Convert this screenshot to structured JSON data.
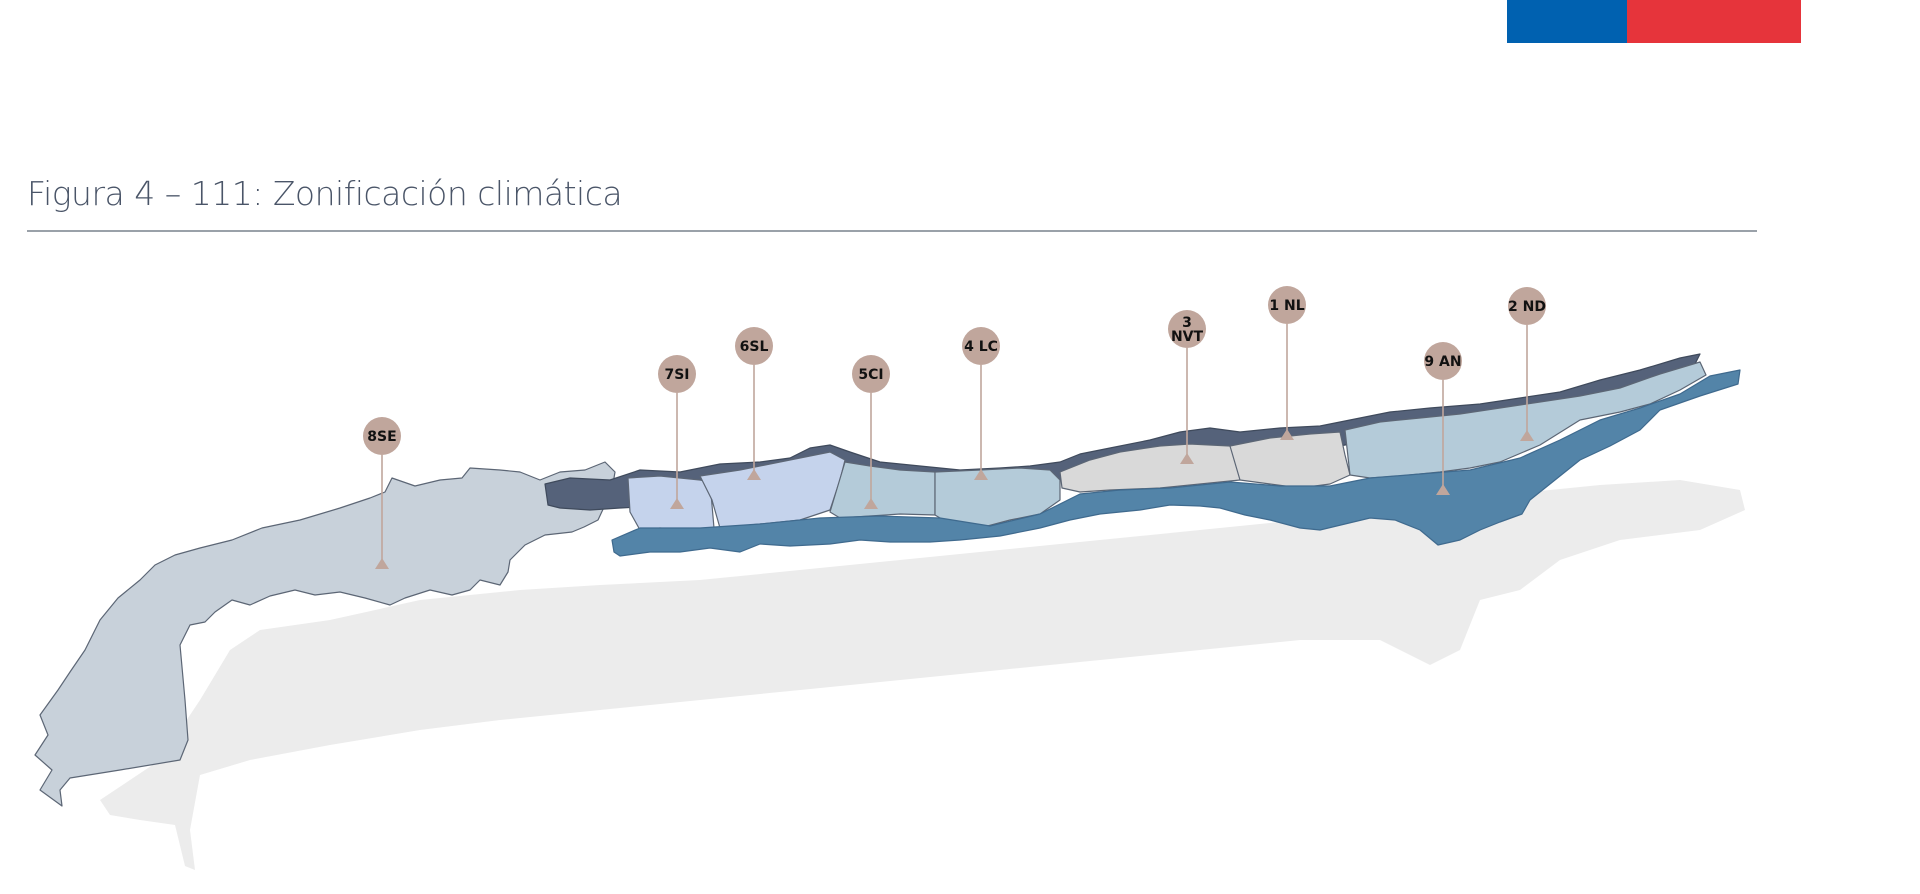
{
  "header": {
    "flag_colors": {
      "blue": "#0061b0",
      "red": "#e6343b"
    }
  },
  "figure": {
    "title": "Figura 4 – 111: Zonificación climática"
  },
  "colors": {
    "marker": "#c0a69c",
    "zone_8SE": "#c8d1da",
    "zone_7SI": "#c5d3ec",
    "zone_6SL": "#c5d3ec",
    "zone_5CI": "#b4cbd9",
    "zone_4LC": "#b4cbd9",
    "zone_3NVT": "#d9d9d9",
    "zone_1NL": "#d9d9d9",
    "zone_2ND": "#b4cbd9",
    "zone_9AN": "#5384a8",
    "coast_band": "#55627a",
    "shadow": "#ececec"
  },
  "zones": [
    {
      "id": "8SE",
      "lines": [
        "8SE"
      ]
    },
    {
      "id": "7SI",
      "lines": [
        "7SI"
      ]
    },
    {
      "id": "6SL",
      "lines": [
        "6SL"
      ]
    },
    {
      "id": "5CI",
      "lines": [
        "5CI"
      ]
    },
    {
      "id": "4LC",
      "lines": [
        "4 LC"
      ]
    },
    {
      "id": "3NVT",
      "lines": [
        "3",
        "NVT"
      ]
    },
    {
      "id": "1NL",
      "lines": [
        "1 NL"
      ]
    },
    {
      "id": "9AN",
      "lines": [
        "9 AN"
      ]
    },
    {
      "id": "2ND",
      "lines": [
        "2 ND"
      ]
    }
  ]
}
